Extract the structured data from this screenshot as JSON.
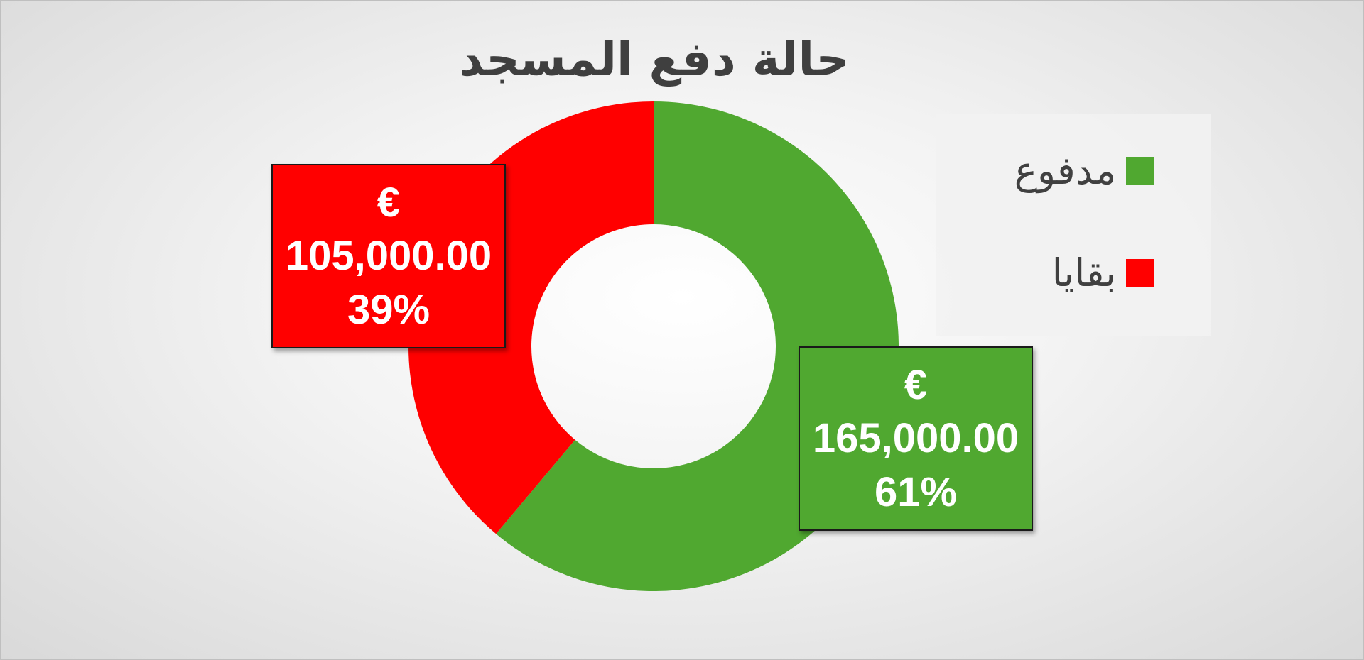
{
  "chart_data": {
    "type": "pie",
    "title": "حالة دفع المسجد",
    "donut": true,
    "legend_position": "right",
    "series": [
      {
        "name": "مدفوع",
        "value": 165000,
        "percent": 61,
        "color": "#50a830",
        "label": {
          "currency": "€",
          "amount": "165,000.00",
          "percent": "61%"
        }
      },
      {
        "name": "بقايا",
        "value": 105000,
        "percent": 39,
        "color": "#ff0000",
        "label": {
          "currency": "€",
          "amount": "105,000.00",
          "percent": "39%"
        }
      }
    ]
  }
}
